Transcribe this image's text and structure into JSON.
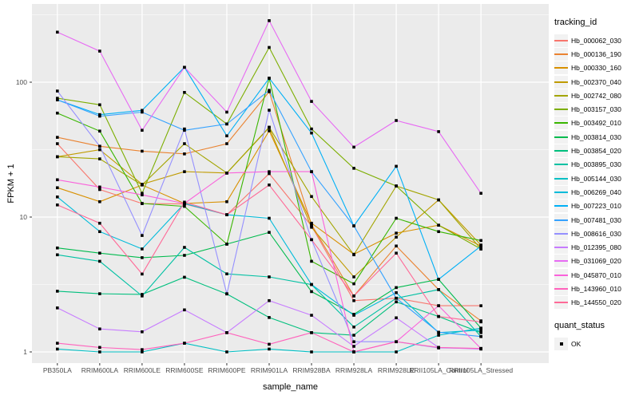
{
  "chart_data": {
    "type": "line",
    "title": "",
    "xlabel": "sample_name",
    "ylabel": "FPKM + 1",
    "x_categories": [
      "PB350LA",
      "RRIM600LA",
      "RRIM600LE",
      "RRIM600SE",
      "RRIM600PE",
      "RRIM901LA",
      "RRIM928BA",
      "RRIM928LA",
      "RRIM928LE",
      "RRII105LA_Control",
      "RRII105LA_Stressed"
    ],
    "y_scale": "log10",
    "y_ticks": [
      1,
      10,
      100
    ],
    "y_tick_labels": [
      "1",
      "10",
      "100"
    ],
    "y_minor_ticks": [
      3.162,
      31.62,
      316.2
    ],
    "ylim": [
      0.83,
      365
    ],
    "grid": "on",
    "legend_position": "right",
    "panel_bg": "#EBEBEB",
    "grid_color": "#FFFFFF",
    "tick_label_color": "#4D4D4D",
    "point_color": "#000000",
    "series": [
      {
        "name": "Hb_000062_030",
        "color": "#F8766D",
        "values": [
          35,
          16,
          12.6,
          12.5,
          10.4,
          21,
          8.6,
          2.4,
          2.5,
          2.2,
          2.2
        ]
      },
      {
        "name": "Hb_000136_190",
        "color": "#EA8331",
        "values": [
          39,
          33.5,
          30.8,
          29.4,
          35,
          85,
          8.8,
          2.6,
          6.1,
          2.9,
          1.7
        ]
      },
      {
        "name": "Hb_000330_160",
        "color": "#D89000",
        "values": [
          16.5,
          13,
          17.3,
          12.6,
          13,
          43.6,
          9,
          5.3,
          7.6,
          8.7,
          6.1
        ]
      },
      {
        "name": "Hb_002370_040",
        "color": "#C09B00",
        "values": [
          28,
          31.6,
          17.5,
          21.7,
          21.2,
          46,
          8.4,
          3.6,
          7.1,
          13.4,
          6.2
        ]
      },
      {
        "name": "Hb_002742_080",
        "color": "#A3A500",
        "values": [
          28,
          27,
          17.3,
          35,
          21.2,
          46.4,
          14.2,
          5.25,
          17,
          13.4,
          5.8
        ]
      },
      {
        "name": "Hb_003157_030",
        "color": "#7CAE00",
        "values": [
          76,
          68,
          15,
          84,
          49,
          181,
          45,
          23,
          17,
          8.7,
          5.8
        ]
      },
      {
        "name": "Hb_003492_010",
        "color": "#39B600",
        "values": [
          59,
          43.4,
          12.6,
          12,
          6.3,
          107,
          4.7,
          3.2,
          9.8,
          7.8,
          6.7
        ]
      },
      {
        "name": "Hb_003814_030",
        "color": "#00BB4E",
        "values": [
          5.9,
          5.4,
          5.0,
          5.2,
          6.3,
          7.7,
          2.8,
          1.9,
          3.0,
          3.45,
          1.5
        ]
      },
      {
        "name": "Hb_003854_020",
        "color": "#00BF7D",
        "values": [
          2.82,
          2.7,
          2.67,
          3.58,
          2.69,
          1.8,
          1.39,
          1.33,
          2.35,
          1.83,
          1.39
        ]
      },
      {
        "name": "Hb_003895_030",
        "color": "#00C1A3",
        "values": [
          5.25,
          4.7,
          2.6,
          5.96,
          3.79,
          3.6,
          3.16,
          1.53,
          2.5,
          2.9,
          1.3
        ]
      },
      {
        "name": "Hb_005144_030",
        "color": "#00BFC4",
        "values": [
          1.05,
          1.0,
          1.0,
          1.16,
          1.0,
          1.05,
          1.0,
          1.0,
          1.0,
          1.33,
          1.5
        ]
      },
      {
        "name": "Hb_006269_040",
        "color": "#00BBDA",
        "values": [
          14.1,
          7.8,
          5.8,
          12.6,
          10.4,
          9.8,
          3.16,
          1.87,
          2.75,
          1.39,
          1.45
        ]
      },
      {
        "name": "Hb_007223_010",
        "color": "#00B0F6",
        "values": [
          74,
          57.5,
          61.8,
          129,
          40,
          107,
          42,
          8.6,
          23.8,
          3.45,
          6.1
        ]
      },
      {
        "name": "Hb_007481_030",
        "color": "#35A2FF",
        "values": [
          74,
          56,
          60,
          44,
          49,
          87,
          21.7,
          8.6,
          2.5,
          1.4,
          1.3
        ]
      },
      {
        "name": "Hb_008616_030",
        "color": "#9590FF",
        "values": [
          86,
          33.5,
          7.3,
          45,
          2.7,
          62,
          6.8,
          1.19,
          1.19,
          1.07,
          1.06
        ]
      },
      {
        "name": "Hb_012395_080",
        "color": "#C77CFF",
        "values": [
          2.12,
          1.48,
          1.41,
          2.05,
          1.39,
          2.4,
          1.87,
          1.1,
          1.79,
          1.08,
          1.05
        ]
      },
      {
        "name": "Hb_031069_020",
        "color": "#E76BF3",
        "values": [
          235,
          170,
          44,
          129,
          60,
          286,
          72,
          33,
          52,
          43,
          15
        ]
      },
      {
        "name": "Hb_045870_010",
        "color": "#FA62DB",
        "values": [
          18.9,
          16.7,
          14.6,
          12.6,
          21.2,
          21.7,
          21.7,
          1.0,
          1.19,
          2.2,
          1.06
        ]
      },
      {
        "name": "Hb_143960_010",
        "color": "#FF62BC",
        "values": [
          1.16,
          1.08,
          1.04,
          1.16,
          1.39,
          1.14,
          1.39,
          1.0,
          1.19,
          1.08,
          1.06
        ]
      },
      {
        "name": "Hb_144550_020",
        "color": "#FF6A98",
        "values": [
          12.3,
          9.0,
          3.78,
          12.9,
          10.4,
          17.3,
          6.8,
          2.6,
          5.4,
          1.83,
          1.67
        ]
      }
    ]
  },
  "legend": {
    "tracking_title": "tracking_id",
    "quant_title": "quant_status",
    "quant_ok_label": "OK"
  }
}
